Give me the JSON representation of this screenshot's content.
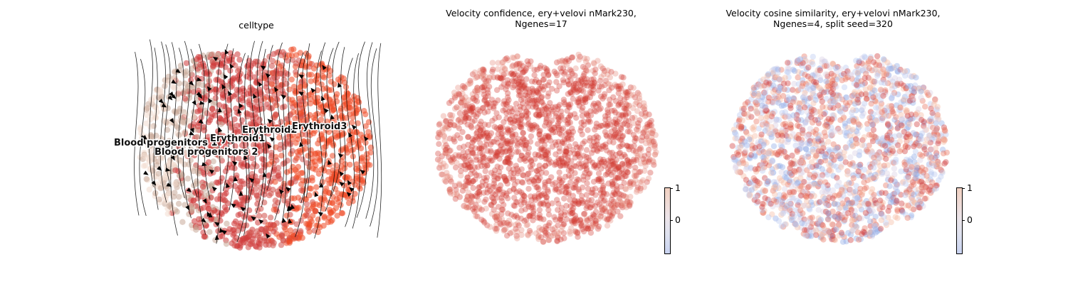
{
  "chart_data": [
    {
      "type": "scatter",
      "title": "celltype",
      "color_by": "celltype",
      "overlay": "velocity stream lines with arrowheads",
      "categories": [
        {
          "name": "Blood progenitors 1",
          "color": "#f2ddd0"
        },
        {
          "name": "Blood progenitors 2",
          "color": "#c9a999"
        },
        {
          "name": "Erythroid1",
          "color": "#cf3a3a"
        },
        {
          "name": "Erythroid2",
          "color": "#d2504a"
        },
        {
          "name": "Erythroid3",
          "color": "#ef4b26"
        }
      ],
      "cluster_labels": [
        "Blood progenitors 1",
        "Erythroid1",
        "Erythroid2",
        "Erythroid3",
        "Blood progenitors 2"
      ],
      "axes_visible": false
    },
    {
      "type": "scatter",
      "title_line1": "Velocity confidence, ery+velovi nMark230,",
      "title_line2": "Ngenes=17",
      "color_by": "velocity confidence",
      "colormap": "coolwarm",
      "colorbar_ticks": [
        "1",
        "0"
      ],
      "point_color": "#d13a30",
      "axes_visible": false
    },
    {
      "type": "scatter",
      "title_line1": "Velocity cosine similarity, ery+velovi nMark230,",
      "title_line2": "Ngenes=4, split seed=320",
      "color_by": "velocity cosine similarity",
      "colormap": "coolwarm",
      "colorbar_ticks": [
        "1",
        "0"
      ],
      "point_colors": [
        "#cf3a3a",
        "#e8735e",
        "#f4b9a0",
        "#b9c8ef",
        "#8fa9e6",
        "#d9d0e3"
      ],
      "axes_visible": false
    }
  ]
}
